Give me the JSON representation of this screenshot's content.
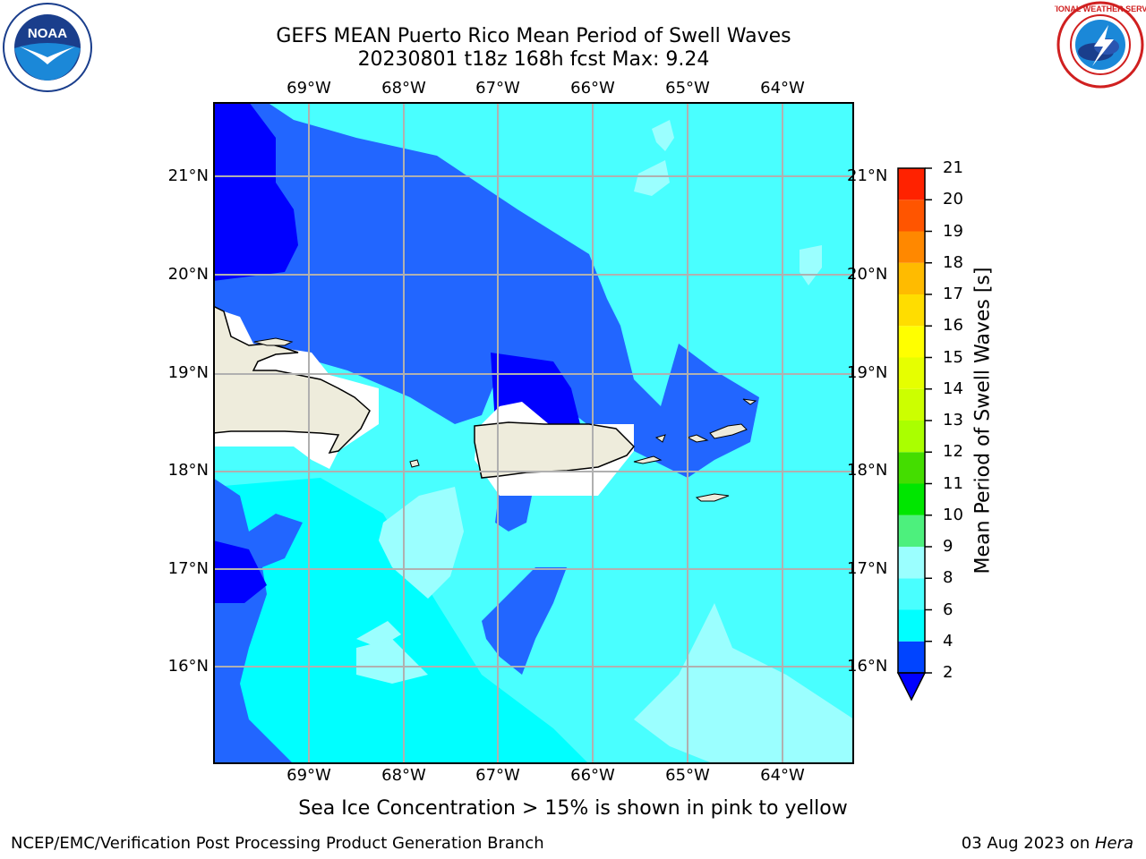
{
  "title": {
    "line1": "GEFS MEAN Puerto Rico Mean Period of Swell Waves",
    "line2": "20230801 t18z 168h fcst   Max: 9.24"
  },
  "map": {
    "lon_labels": [
      "69°W",
      "68°W",
      "67°W",
      "66°W",
      "65°W",
      "64°W"
    ],
    "lat_labels": [
      "21°N",
      "20°N",
      "19°N",
      "18°N",
      "17°N",
      "16°N"
    ],
    "colors": {
      "ocean_dark": "#0000ff",
      "ocean_blue": "#2266ff",
      "ocean_cyan": "#00ffff",
      "ocean_light": "#49ffff",
      "ocean_pale": "#9bffff",
      "land": "#eeecdc",
      "grid": "#b0b0b0"
    }
  },
  "colorbar": {
    "title": "Mean Period of Swell Waves [s]",
    "ticks": [
      "2",
      "4",
      "6",
      "8",
      "9",
      "10",
      "11",
      "12",
      "13",
      "14",
      "15",
      "16",
      "17",
      "18",
      "19",
      "20",
      "21"
    ],
    "colors": [
      "#0044ff",
      "#00ffff",
      "#49ffff",
      "#9bffff",
      "#4df07d",
      "#00e600",
      "#44dd00",
      "#aaff00",
      "#ccff00",
      "#e6ff00",
      "#ffff00",
      "#ffdd00",
      "#ffbb00",
      "#ff8800",
      "#ff5500",
      "#ff2200"
    ],
    "under_color": "#0000ff"
  },
  "caption": "Sea Ice Concentration > 15% is shown in pink to yellow",
  "footer": {
    "left": "NCEP/EMC/Verification Post Processing Product Generation Branch",
    "right_date": "03 Aug 2023 on ",
    "right_machine": "Hera"
  },
  "logos": {
    "noaa": "NOAA",
    "nws": "NATIONAL WEATHER SERVICE"
  }
}
